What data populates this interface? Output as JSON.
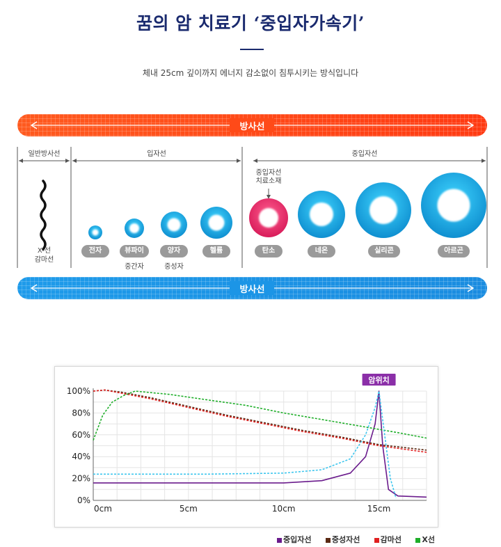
{
  "header": {
    "title": "꿈의 암 치료기 ‘중입자가속기’",
    "subtitle": "체내 25cm 깊이까지 에너지 감소없이 침투시키는 방식입니다"
  },
  "bands": {
    "top_label": "방사선",
    "bottom_label": "방사선"
  },
  "categories": {
    "general": "일반방사선",
    "particle": "입자선",
    "heavy": "중입자선"
  },
  "xray_labels": [
    "X-선",
    "감마선"
  ],
  "carbon_note": [
    "중입자선",
    "치료소재"
  ],
  "particles": [
    {
      "name": "전자",
      "sub": "",
      "color": "#14a6dc",
      "highlight": false
    },
    {
      "name": "뷰파이",
      "sub": "중간자",
      "color": "#14a6dc",
      "highlight": false
    },
    {
      "name": "양자",
      "sub": "중성자",
      "color": "#14a6dc",
      "highlight": false
    },
    {
      "name": "헬륨",
      "sub": "",
      "color": "#14a6dc",
      "highlight": false
    },
    {
      "name": "탄소",
      "sub": "",
      "color": "#e8306a",
      "highlight": true
    },
    {
      "name": "네온",
      "sub": "",
      "color": "#14a6dc",
      "highlight": false
    },
    {
      "name": "실리콘",
      "sub": "",
      "color": "#14a6dc",
      "highlight": false
    },
    {
      "name": "아르곤",
      "sub": "",
      "color": "#14a6dc",
      "highlight": false
    }
  ],
  "chart_data": {
    "type": "line",
    "title": "",
    "xlabel": "",
    "ylabel": "",
    "x_ticks": [
      "0cm",
      "5cm",
      "10cm",
      "15cm"
    ],
    "y_ticks": [
      "0%",
      "20%",
      "40%",
      "60%",
      "80%",
      "100%"
    ],
    "xlim": [
      0,
      17.5
    ],
    "ylim": [
      0,
      100
    ],
    "grid": true,
    "annotation": {
      "label": "암위치",
      "x": 15,
      "color": "#8b2fa8"
    },
    "series": [
      {
        "name": "중입자선",
        "color": "#6a1b8c",
        "dash": false,
        "points": [
          [
            0,
            16
          ],
          [
            6,
            16
          ],
          [
            10,
            16
          ],
          [
            12,
            18
          ],
          [
            13.5,
            25
          ],
          [
            14.3,
            40
          ],
          [
            14.8,
            70
          ],
          [
            15.0,
            100
          ],
          [
            15.2,
            50
          ],
          [
            15.5,
            10
          ],
          [
            16,
            4
          ],
          [
            17.5,
            3
          ]
        ]
      },
      {
        "name": "중성자선",
        "color": "#5a2a14",
        "dash": true,
        "points": [
          [
            0,
            100
          ],
          [
            0.6,
            101
          ],
          [
            1.5,
            99
          ],
          [
            3,
            94
          ],
          [
            5,
            86
          ],
          [
            7,
            78
          ],
          [
            9,
            71
          ],
          [
            11,
            64
          ],
          [
            13,
            58
          ],
          [
            15,
            51
          ],
          [
            17.5,
            46
          ]
        ]
      },
      {
        "name": "감마선",
        "color": "#e02020",
        "dash": true,
        "points": [
          [
            0,
            100
          ],
          [
            0.6,
            101
          ],
          [
            1.5,
            98
          ],
          [
            3,
            93
          ],
          [
            5,
            85
          ],
          [
            7,
            77
          ],
          [
            9,
            70
          ],
          [
            11,
            63
          ],
          [
            13,
            57
          ],
          [
            15,
            50
          ],
          [
            17.5,
            44
          ]
        ]
      },
      {
        "name": "X선",
        "color": "#1fae2a",
        "dash": true,
        "points": [
          [
            0,
            55
          ],
          [
            0.5,
            78
          ],
          [
            1,
            90
          ],
          [
            1.6,
            96
          ],
          [
            2.2,
            100
          ],
          [
            4,
            97
          ],
          [
            6,
            92
          ],
          [
            8,
            87
          ],
          [
            10,
            80
          ],
          [
            12,
            74
          ],
          [
            14,
            68
          ],
          [
            16,
            62
          ],
          [
            17.5,
            57
          ]
        ]
      },
      {
        "name": "",
        "color": "#3ec6ee",
        "dash": true,
        "points": [
          [
            0,
            24
          ],
          [
            6,
            24
          ],
          [
            10,
            25
          ],
          [
            12,
            28
          ],
          [
            13.5,
            38
          ],
          [
            14.3,
            60
          ],
          [
            14.8,
            85
          ],
          [
            15.0,
            100
          ],
          [
            15.3,
            60
          ],
          [
            15.6,
            20
          ],
          [
            15.9,
            2
          ]
        ]
      }
    ],
    "legend": [
      "중입자선",
      "중성자선",
      "감마선",
      "X선"
    ],
    "legend_colors": [
      "#6a1b8c",
      "#5a2a14",
      "#e02020",
      "#1fae2a"
    ]
  }
}
